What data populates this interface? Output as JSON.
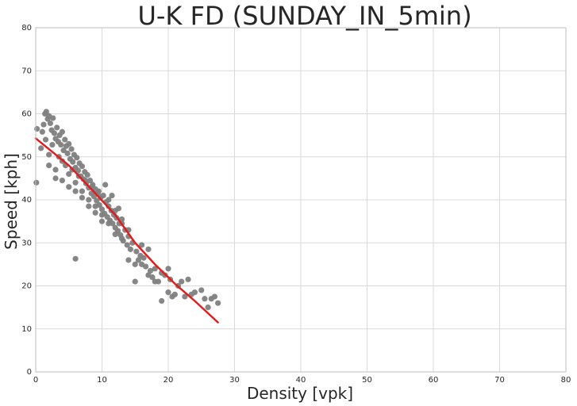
{
  "chart_data": {
    "type": "scatter",
    "title": "U-K FD (SUNDAY_IN_5min)",
    "xlabel": "Density [vpk]",
    "ylabel": "Speed [kph]",
    "xlim": [
      0,
      80
    ],
    "ylim": [
      0,
      80
    ],
    "xticks": [
      0,
      10,
      20,
      30,
      40,
      50,
      60,
      70,
      80
    ],
    "yticks": [
      0,
      10,
      20,
      30,
      40,
      50,
      60,
      70,
      80
    ],
    "grid": true,
    "colors": {
      "points": "#808080",
      "fit_line": "#e41a1c",
      "grid": "#d9d9d9",
      "axes": "#bcbcbc"
    },
    "series": [
      {
        "kind": "scatter",
        "points": [
          [
            0.1,
            44.0
          ],
          [
            0.2,
            56.5
          ],
          [
            0.8,
            52.0
          ],
          [
            1.0,
            55.8
          ],
          [
            1.2,
            57.5
          ],
          [
            1.4,
            60.0
          ],
          [
            1.6,
            60.5
          ],
          [
            1.8,
            58.8
          ],
          [
            2.0,
            59.5
          ],
          [
            2.2,
            57.8
          ],
          [
            2.4,
            56.2
          ],
          [
            2.6,
            59.0
          ],
          [
            2.8,
            55.5
          ],
          [
            3.0,
            54.2
          ],
          [
            3.2,
            56.8
          ],
          [
            3.4,
            53.5
          ],
          [
            3.6,
            55.0
          ],
          [
            3.8,
            52.8
          ],
          [
            4.0,
            55.8
          ],
          [
            4.2,
            51.5
          ],
          [
            4.4,
            54.0
          ],
          [
            4.6,
            52.5
          ],
          [
            4.8,
            50.8
          ],
          [
            5.0,
            53.0
          ],
          [
            5.2,
            49.5
          ],
          [
            5.4,
            51.8
          ],
          [
            5.6,
            48.8
          ],
          [
            5.8,
            50.5
          ],
          [
            6.0,
            47.5
          ],
          [
            6.2,
            49.8
          ],
          [
            6.4,
            46.8
          ],
          [
            6.6,
            48.5
          ],
          [
            6.8,
            45.5
          ],
          [
            7.0,
            47.8
          ],
          [
            7.2,
            44.8
          ],
          [
            7.4,
            46.5
          ],
          [
            7.6,
            43.8
          ],
          [
            7.8,
            45.8
          ],
          [
            8.0,
            42.8
          ],
          [
            8.2,
            44.5
          ],
          [
            8.4,
            41.5
          ],
          [
            8.6,
            43.5
          ],
          [
            8.8,
            40.8
          ],
          [
            9.0,
            42.5
          ],
          [
            9.2,
            39.8
          ],
          [
            9.4,
            41.5
          ],
          [
            9.6,
            38.8
          ],
          [
            9.8,
            40.5
          ],
          [
            10.0,
            37.8
          ],
          [
            10.2,
            41.0
          ],
          [
            10.4,
            36.8
          ],
          [
            10.6,
            39.5
          ],
          [
            10.8,
            36.0
          ],
          [
            11.0,
            38.5
          ],
          [
            11.2,
            35.2
          ],
          [
            11.4,
            37.5
          ],
          [
            11.6,
            34.5
          ],
          [
            11.8,
            36.5
          ],
          [
            12.0,
            33.5
          ],
          [
            12.2,
            35.8
          ],
          [
            12.4,
            32.8
          ],
          [
            12.6,
            34.5
          ],
          [
            12.8,
            31.8
          ],
          [
            13.0,
            35.5
          ],
          [
            13.2,
            30.5
          ],
          [
            13.5,
            33.0
          ],
          [
            13.8,
            29.5
          ],
          [
            14.0,
            31.5
          ],
          [
            14.3,
            28.5
          ],
          [
            14.6,
            30.0
          ],
          [
            15.0,
            21.0
          ],
          [
            15.2,
            28.0
          ],
          [
            15.5,
            26.0
          ],
          [
            15.8,
            27.0
          ],
          [
            16.0,
            25.0
          ],
          [
            16.3,
            26.5
          ],
          [
            16.6,
            24.5
          ],
          [
            17.0,
            22.5
          ],
          [
            17.3,
            23.5
          ],
          [
            17.6,
            22.0
          ],
          [
            18.0,
            21.0
          ],
          [
            18.5,
            21.0
          ],
          [
            19.0,
            16.5
          ],
          [
            19.5,
            22.5
          ],
          [
            20.0,
            18.5
          ],
          [
            20.3,
            21.5
          ],
          [
            20.6,
            17.5
          ],
          [
            21.0,
            18.0
          ],
          [
            21.5,
            20.0
          ],
          [
            22.0,
            21.0
          ],
          [
            22.5,
            17.5
          ],
          [
            23.0,
            21.5
          ],
          [
            23.5,
            18.0
          ],
          [
            24.0,
            18.5
          ],
          [
            25.0,
            19.0
          ],
          [
            25.5,
            17.0
          ],
          [
            26.0,
            15.0
          ],
          [
            26.5,
            17.0
          ],
          [
            27.0,
            17.5
          ],
          [
            27.5,
            16.0
          ],
          [
            6.0,
            26.3
          ],
          [
            3.0,
            47.0
          ],
          [
            4.0,
            49.0
          ],
          [
            5.0,
            46.0
          ],
          [
            6.0,
            44.0
          ],
          [
            7.0,
            42.0
          ],
          [
            8.0,
            40.0
          ],
          [
            9.0,
            38.5
          ],
          [
            10.0,
            36.5
          ],
          [
            11.0,
            40.0
          ],
          [
            12.0,
            37.5
          ],
          [
            13.0,
            34.5
          ],
          [
            14.0,
            33.0
          ],
          [
            2.0,
            50.5
          ],
          [
            2.5,
            52.8
          ],
          [
            3.5,
            50.0
          ],
          [
            4.5,
            48.0
          ],
          [
            5.5,
            47.0
          ],
          [
            6.5,
            45.5
          ],
          [
            7.5,
            44.5
          ],
          [
            8.5,
            43.0
          ],
          [
            9.5,
            42.0
          ],
          [
            10.5,
            43.5
          ],
          [
            11.5,
            41.0
          ],
          [
            12.5,
            38.0
          ],
          [
            1.5,
            54.0
          ],
          [
            2.0,
            48.0
          ],
          [
            3.0,
            45.0
          ],
          [
            4.0,
            44.5
          ],
          [
            5.0,
            43.0
          ],
          [
            6.0,
            42.0
          ],
          [
            7.0,
            40.5
          ],
          [
            8.0,
            38.5
          ],
          [
            9.0,
            37.0
          ],
          [
            10.0,
            35.0
          ],
          [
            11.0,
            34.5
          ],
          [
            12.0,
            32.0
          ],
          [
            13.0,
            31.0
          ],
          [
            14.0,
            26.0
          ],
          [
            15.0,
            25.0
          ],
          [
            16.0,
            29.5
          ],
          [
            17.0,
            28.5
          ],
          [
            18.0,
            24.0
          ],
          [
            19.0,
            23.0
          ],
          [
            20.0,
            24.0
          ]
        ]
      },
      {
        "kind": "line",
        "points": [
          [
            0.0,
            54.3
          ],
          [
            5.0,
            48.0
          ],
          [
            9.0,
            41.5
          ],
          [
            12.0,
            36.5
          ],
          [
            15.0,
            30.0
          ],
          [
            18.0,
            25.0
          ],
          [
            21.0,
            20.5
          ],
          [
            24.0,
            16.5
          ],
          [
            27.5,
            11.5
          ]
        ]
      }
    ]
  }
}
